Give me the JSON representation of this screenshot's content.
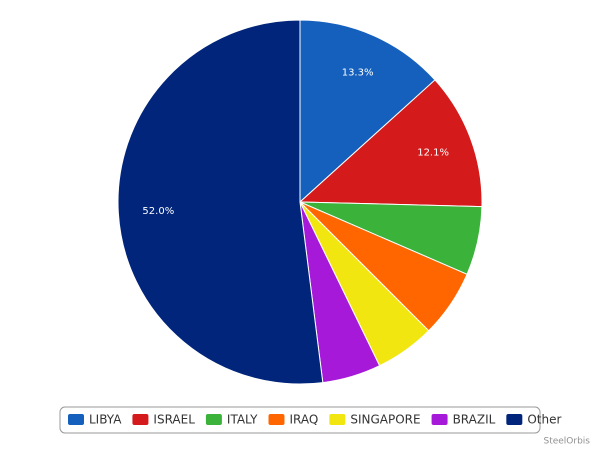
{
  "chart_data": {
    "type": "pie",
    "credit": "SteelOrbis",
    "categories": [
      "LIBYA",
      "ISRAEL",
      "ITALY",
      "IRAQ",
      "SINGAPORE",
      "BRAZIL",
      "Other"
    ],
    "values": [
      13.3,
      12.1,
      6.1,
      6.0,
      5.3,
      5.2,
      52.0
    ],
    "value_labels": [
      "13.3%",
      "12.1%",
      null,
      null,
      null,
      null,
      "52.0%"
    ],
    "colors": [
      "#1560bd",
      "#d41a1a",
      "#3bb33b",
      "#ff6600",
      "#f2e610",
      "#a719d9",
      "#00257a"
    ],
    "legend": "bottom"
  }
}
